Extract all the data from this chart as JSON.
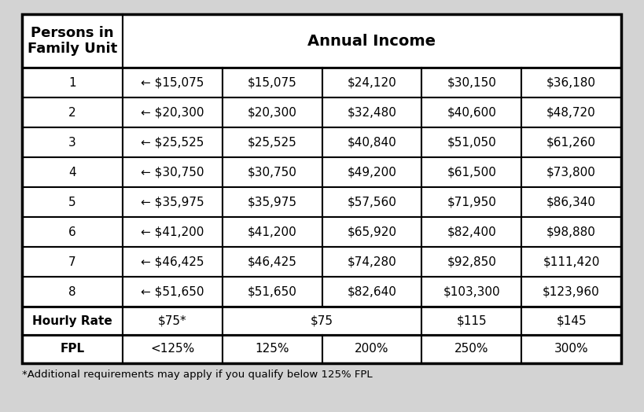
{
  "title": "Annual Income",
  "col0_header": "Persons in\nFamily Unit",
  "data_rows": [
    [
      "1",
      "← $15,075",
      "$15,075",
      "$24,120",
      "$30,150",
      "$36,180"
    ],
    [
      "2",
      "← $20,300",
      "$20,300",
      "$32,480",
      "$40,600",
      "$48,720"
    ],
    [
      "3",
      "← $25,525",
      "$25,525",
      "$40,840",
      "$51,050",
      "$61,260"
    ],
    [
      "4",
      "← $30,750",
      "$30,750",
      "$49,200",
      "$61,500",
      "$73,800"
    ],
    [
      "5",
      "← $35,975",
      "$35,975",
      "$57,560",
      "$71,950",
      "$86,340"
    ],
    [
      "6",
      "← $41,200",
      "$41,200",
      "$65,920",
      "$82,400",
      "$98,880"
    ],
    [
      "7",
      "← $46,425",
      "$46,425",
      "$74,280",
      "$92,850",
      "$111,420"
    ],
    [
      "8",
      "← $51,650",
      "$51,650",
      "$82,640",
      "$103,300",
      "$123,960"
    ]
  ],
  "hourly_row": [
    "Hourly Rate",
    "$75*",
    "$75",
    "$115",
    "$145"
  ],
  "fpl_row": [
    "FPL",
    "<125%",
    "125%",
    "200%",
    "250%",
    "300%"
  ],
  "footnote": "*Additional requirements may apply if you qualify below 125% FPL",
  "bg_color": "#d3d3d3",
  "cell_bg": "#ffffff",
  "border_color": "#000000",
  "cell_fontsize": 11,
  "header_fontsize": 13,
  "footnote_fontsize": 9.5,
  "lw": 1.5
}
